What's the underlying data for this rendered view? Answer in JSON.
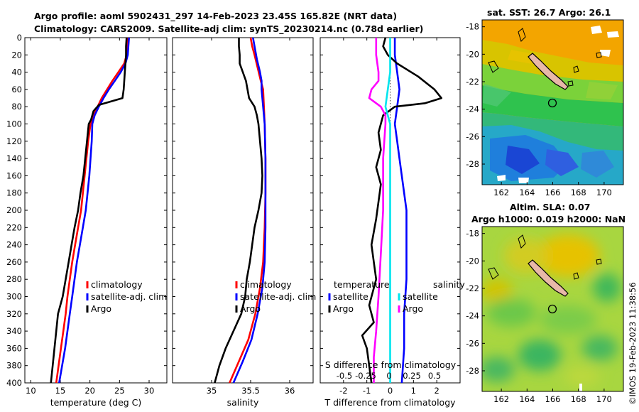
{
  "title": {
    "line1": "Argo profile: aoml 5902431_297 14-Feb-2023 23.45S 165.82E (NRT data)",
    "line2": "Climatology: CARS2009. Satellite-adj clim: synTS_20230214.nc (0.78d earlier)"
  },
  "colors": {
    "climatology": "#ff0000",
    "satellite": "#0000ff",
    "argo": "#000000",
    "sat_salinity": "#00e5ee",
    "argo_salinity": "#ff00ff",
    "land": "#e8b8a8"
  },
  "depth_axis": {
    "ylim": [
      0,
      400
    ],
    "ticks": [
      "0",
      "20",
      "40",
      "60",
      "80",
      "100",
      "120",
      "140",
      "160",
      "180",
      "200",
      "220",
      "240",
      "260",
      "280",
      "300",
      "320",
      "340",
      "360",
      "380",
      "400"
    ]
  },
  "panel_temp": {
    "xlabel": "temperature (deg C)",
    "xlim": [
      9,
      33
    ],
    "xticks": [
      "10",
      "15",
      "20",
      "25",
      "30"
    ],
    "legend": [
      "climatology",
      "satellite-adj. clim",
      "Argo"
    ]
  },
  "panel_salt": {
    "xlabel": "salinity",
    "xlim": [
      34.5,
      36.3
    ],
    "xticks": [
      "35",
      "35.5",
      "36"
    ],
    "legend": [
      "climatology",
      "satellite-adj. clim",
      "Argo"
    ]
  },
  "panel_diff": {
    "xlabel": "T difference from climatology",
    "top_label": "S difference from climatology",
    "xlim": [
      -3,
      3
    ],
    "xticks": [
      "-2",
      "-1",
      "0",
      "1",
      "2"
    ],
    "s_ticks": [
      "-0.5",
      "-0.25",
      "0",
      "0.25",
      "0.5"
    ],
    "legend_temp_title": "temperature",
    "legend_sal_title": "salinity",
    "legend_temp": [
      "satellite",
      "Argo"
    ],
    "legend_sal": [
      "satellite",
      "Argo"
    ]
  },
  "map_sst": {
    "title": "sat. SST: 26.7 Argo: 26.1",
    "lat_ticks": [
      "-18",
      "-20",
      "-22",
      "-24",
      "-26",
      "-28"
    ],
    "lon_ticks": [
      "162",
      "164",
      "166",
      "168",
      "170"
    ]
  },
  "map_sla": {
    "title1": "Altim. SLA: 0.07",
    "title2": "Argo h1000: 0.019 h2000: NaN",
    "lat_ticks": [
      "-18",
      "-20",
      "-22",
      "-24",
      "-26",
      "-28"
    ],
    "lon_ticks": [
      "162",
      "164",
      "166",
      "168",
      "170"
    ]
  },
  "stamp": "©IMOS 19-Feb-2023 11:38:56",
  "chart_data": [
    {
      "type": "line",
      "title": "",
      "xlabel": "temperature (deg C)",
      "ylabel": "",
      "xlim": [
        9,
        33
      ],
      "ylim": [
        0,
        400
      ],
      "series": [
        {
          "name": "climatology",
          "color": "#ff0000",
          "points": [
            [
              26.4,
              0
            ],
            [
              26.3,
              10
            ],
            [
              26.2,
              20
            ],
            [
              25.8,
              30
            ],
            [
              24.8,
              40
            ],
            [
              23.8,
              50
            ],
            [
              22.9,
              60
            ],
            [
              22.0,
              70
            ],
            [
              21.3,
              80
            ],
            [
              20.6,
              90
            ],
            [
              20.1,
              100
            ],
            [
              19.7,
              120
            ],
            [
              19.4,
              140
            ],
            [
              19.1,
              160
            ],
            [
              18.8,
              180
            ],
            [
              18.5,
              200
            ],
            [
              18.0,
              220
            ],
            [
              17.5,
              240
            ],
            [
              17.0,
              260
            ],
            [
              16.6,
              280
            ],
            [
              16.2,
              300
            ],
            [
              15.9,
              320
            ],
            [
              15.5,
              340
            ],
            [
              15.1,
              360
            ],
            [
              14.7,
              380
            ],
            [
              14.3,
              400
            ]
          ]
        },
        {
          "name": "satellite-adj. clim",
          "color": "#0000ff",
          "points": [
            [
              26.6,
              0
            ],
            [
              26.5,
              10
            ],
            [
              26.4,
              20
            ],
            [
              26.0,
              30
            ],
            [
              25.2,
              40
            ],
            [
              24.2,
              50
            ],
            [
              23.2,
              60
            ],
            [
              22.3,
              70
            ],
            [
              21.5,
              80
            ],
            [
              20.8,
              90
            ],
            [
              20.4,
              100
            ],
            [
              20.3,
              120
            ],
            [
              20.1,
              140
            ],
            [
              19.9,
              160
            ],
            [
              19.6,
              180
            ],
            [
              19.3,
              200
            ],
            [
              18.8,
              220
            ],
            [
              18.3,
              240
            ],
            [
              17.8,
              260
            ],
            [
              17.4,
              280
            ],
            [
              17.0,
              300
            ],
            [
              16.6,
              320
            ],
            [
              16.2,
              340
            ],
            [
              15.8,
              360
            ],
            [
              15.3,
              380
            ],
            [
              14.8,
              400
            ]
          ]
        },
        {
          "name": "Argo",
          "color": "#000000",
          "points": [
            [
              26.2,
              0
            ],
            [
              26.1,
              10
            ],
            [
              26.1,
              20
            ],
            [
              26.0,
              30
            ],
            [
              25.9,
              40
            ],
            [
              25.8,
              50
            ],
            [
              25.7,
              60
            ],
            [
              25.5,
              70
            ],
            [
              21.5,
              78
            ],
            [
              20.6,
              85
            ],
            [
              20.2,
              95
            ],
            [
              19.8,
              100
            ],
            [
              19.5,
              120
            ],
            [
              19.2,
              140
            ],
            [
              18.9,
              160
            ],
            [
              18.4,
              180
            ],
            [
              18.0,
              200
            ],
            [
              17.4,
              220
            ],
            [
              16.9,
              240
            ],
            [
              16.4,
              260
            ],
            [
              15.9,
              280
            ],
            [
              15.4,
              300
            ],
            [
              14.6,
              320
            ],
            [
              14.3,
              340
            ],
            [
              14.0,
              360
            ],
            [
              13.7,
              380
            ],
            [
              13.4,
              400
            ]
          ]
        }
      ]
    },
    {
      "type": "line",
      "title": "",
      "xlabel": "salinity",
      "ylabel": "",
      "xlim": [
        34.5,
        36.3
      ],
      "ylim": [
        0,
        400
      ],
      "series": [
        {
          "name": "climatology",
          "color": "#ff0000",
          "points": [
            [
              35.5,
              0
            ],
            [
              35.52,
              10
            ],
            [
              35.55,
              20
            ],
            [
              35.59,
              35
            ],
            [
              35.63,
              50
            ],
            [
              35.66,
              60
            ],
            [
              35.67,
              80
            ],
            [
              35.68,
              100
            ],
            [
              35.69,
              140
            ],
            [
              35.69,
              180
            ],
            [
              35.68,
              220
            ],
            [
              35.66,
              260
            ],
            [
              35.62,
              290
            ],
            [
              35.56,
              320
            ],
            [
              35.47,
              350
            ],
            [
              35.35,
              375
            ],
            [
              35.23,
              400
            ]
          ]
        },
        {
          "name": "satellite-adj. clim",
          "color": "#0000ff",
          "points": [
            [
              35.53,
              0
            ],
            [
              35.55,
              10
            ],
            [
              35.58,
              25
            ],
            [
              35.62,
              40
            ],
            [
              35.64,
              50
            ],
            [
              35.64,
              60
            ],
            [
              35.66,
              80
            ],
            [
              35.68,
              100
            ],
            [
              35.69,
              140
            ],
            [
              35.69,
              180
            ],
            [
              35.69,
              220
            ],
            [
              35.68,
              260
            ],
            [
              35.65,
              290
            ],
            [
              35.59,
              320
            ],
            [
              35.51,
              350
            ],
            [
              35.4,
              375
            ],
            [
              35.28,
              400
            ]
          ]
        },
        {
          "name": "Argo",
          "color": "#000000",
          "points": [
            [
              35.35,
              0
            ],
            [
              35.35,
              10
            ],
            [
              35.36,
              20
            ],
            [
              35.36,
              30
            ],
            [
              35.4,
              40
            ],
            [
              35.44,
              50
            ],
            [
              35.46,
              60
            ],
            [
              35.48,
              70
            ],
            [
              35.55,
              80
            ],
            [
              35.58,
              90
            ],
            [
              35.6,
              100
            ],
            [
              35.62,
              120
            ],
            [
              35.64,
              140
            ],
            [
              35.65,
              160
            ],
            [
              35.64,
              180
            ],
            [
              35.6,
              200
            ],
            [
              35.55,
              220
            ],
            [
              35.52,
              240
            ],
            [
              35.49,
              260
            ],
            [
              35.45,
              280
            ],
            [
              35.43,
              300
            ],
            [
              35.38,
              320
            ],
            [
              35.28,
              340
            ],
            [
              35.18,
              360
            ],
            [
              35.1,
              380
            ],
            [
              35.04,
              400
            ]
          ]
        }
      ]
    },
    {
      "type": "line",
      "title": "",
      "xlabel": "T difference from climatology",
      "ylabel": "",
      "xlim": [
        -3,
        3
      ],
      "ylim": [
        0,
        400
      ],
      "series": [
        {
          "name": "temperature satellite",
          "color": "#0000ff",
          "points": [
            [
              0.2,
              0
            ],
            [
              0.2,
              20
            ],
            [
              0.3,
              40
            ],
            [
              0.4,
              60
            ],
            [
              0.3,
              80
            ],
            [
              0.2,
              100
            ],
            [
              0.3,
              120
            ],
            [
              0.4,
              140
            ],
            [
              0.5,
              160
            ],
            [
              0.6,
              180
            ],
            [
              0.7,
              200
            ],
            [
              0.7,
              240
            ],
            [
              0.7,
              280
            ],
            [
              0.6,
              320
            ],
            [
              0.6,
              360
            ],
            [
              0.5,
              400
            ]
          ]
        },
        {
          "name": "temperature Argo",
          "color": "#000000",
          "points": [
            [
              -0.2,
              0
            ],
            [
              -0.3,
              10
            ],
            [
              -0.1,
              20
            ],
            [
              0.3,
              30
            ],
            [
              1.2,
              45
            ],
            [
              1.9,
              60
            ],
            [
              2.2,
              70
            ],
            [
              1.5,
              76
            ],
            [
              0.2,
              80
            ],
            [
              -0.3,
              90
            ],
            [
              -0.5,
              110
            ],
            [
              -0.4,
              130
            ],
            [
              -0.6,
              150
            ],
            [
              -0.4,
              170
            ],
            [
              -0.5,
              190
            ],
            [
              -0.6,
              210
            ],
            [
              -0.8,
              240
            ],
            [
              -0.7,
              260
            ],
            [
              -0.6,
              280
            ],
            [
              -0.9,
              310
            ],
            [
              -0.7,
              330
            ],
            [
              -1.2,
              345
            ],
            [
              -1.0,
              360
            ],
            [
              -0.9,
              380
            ],
            [
              -0.8,
              400
            ]
          ]
        },
        {
          "name": "salinity satellite",
          "color": "#00e5ee",
          "points": [
            [
              0.0,
              0
            ],
            [
              0.0,
              20
            ],
            [
              0.0,
              40
            ],
            [
              -0.1,
              60
            ],
            [
              -0.2,
              80
            ],
            [
              0.0,
              100
            ],
            [
              0.0,
              150
            ],
            [
              0.0,
              200
            ],
            [
              0.0,
              300
            ],
            [
              0.0,
              400
            ]
          ]
        },
        {
          "name": "salinity Argo",
          "color": "#ff00ff",
          "points": [
            [
              -0.6,
              0
            ],
            [
              -0.6,
              20
            ],
            [
              -0.5,
              40
            ],
            [
              -0.5,
              50
            ],
            [
              -0.8,
              60
            ],
            [
              -0.9,
              70
            ],
            [
              -0.4,
              80
            ],
            [
              -0.2,
              90
            ],
            [
              -0.2,
              100
            ],
            [
              -0.3,
              140
            ],
            [
              -0.3,
              200
            ],
            [
              -0.4,
              250
            ],
            [
              -0.5,
              300
            ],
            [
              -0.6,
              340
            ],
            [
              -0.7,
              370
            ],
            [
              -0.7,
              400
            ]
          ]
        }
      ]
    },
    {
      "type": "heatmap",
      "title": "sat. SST: 26.7 Argo: 26.1",
      "xlabel": "",
      "ylabel": "",
      "xlim": [
        160.5,
        171.5
      ],
      "ylim": [
        -29.5,
        -17.5
      ],
      "argo_position": [
        165.82,
        -23.45
      ]
    },
    {
      "type": "heatmap",
      "title": "Altim. SLA: 0.07 / Argo h1000: 0.019 h2000: NaN",
      "xlabel": "",
      "ylabel": "",
      "xlim": [
        160.5,
        171.5
      ],
      "ylim": [
        -29.5,
        -17.5
      ],
      "argo_position": [
        165.82,
        -23.45
      ]
    }
  ]
}
